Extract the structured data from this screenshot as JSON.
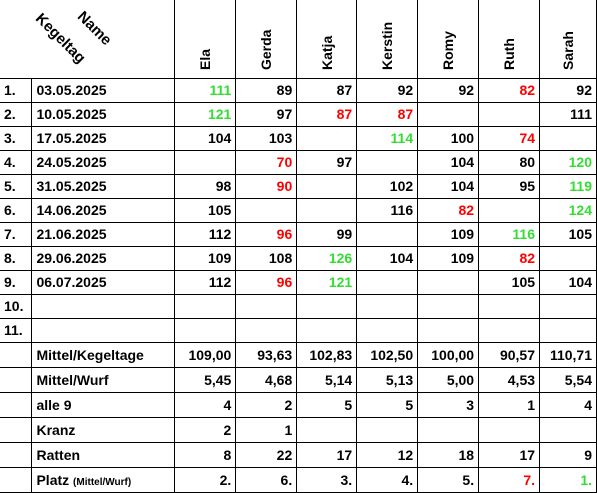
{
  "header": {
    "corner_name": "Name",
    "corner_kegeltag": "Kegeltag",
    "players": [
      "Ela",
      "Gerda",
      "Katja",
      "Kerstin",
      "Romy",
      "Ruth",
      "Sarah"
    ]
  },
  "colors": {
    "red": "#ff0000",
    "green": "#33dd33"
  },
  "rows": [
    {
      "num": "1.",
      "date": "03.05.2025",
      "cells": [
        {
          "v": "111",
          "c": "green"
        },
        {
          "v": "89",
          "c": ""
        },
        {
          "v": "87",
          "c": ""
        },
        {
          "v": "92",
          "c": ""
        },
        {
          "v": "92",
          "c": ""
        },
        {
          "v": "82",
          "c": "red"
        },
        {
          "v": "92",
          "c": ""
        }
      ]
    },
    {
      "num": "2.",
      "date": "10.05.2025",
      "cells": [
        {
          "v": "121",
          "c": "green"
        },
        {
          "v": "97",
          "c": ""
        },
        {
          "v": "87",
          "c": "red"
        },
        {
          "v": "87",
          "c": "red"
        },
        {
          "v": "",
          "c": ""
        },
        {
          "v": "",
          "c": ""
        },
        {
          "v": "111",
          "c": ""
        }
      ]
    },
    {
      "num": "3.",
      "date": "17.05.2025",
      "cells": [
        {
          "v": "104",
          "c": ""
        },
        {
          "v": "103",
          "c": ""
        },
        {
          "v": "",
          "c": ""
        },
        {
          "v": "114",
          "c": "green"
        },
        {
          "v": "100",
          "c": ""
        },
        {
          "v": "74",
          "c": "red"
        },
        {
          "v": "",
          "c": ""
        }
      ]
    },
    {
      "num": "4.",
      "date": "24.05.2025",
      "cells": [
        {
          "v": "",
          "c": ""
        },
        {
          "v": "70",
          "c": "red"
        },
        {
          "v": "97",
          "c": ""
        },
        {
          "v": "",
          "c": ""
        },
        {
          "v": "104",
          "c": ""
        },
        {
          "v": "80",
          "c": ""
        },
        {
          "v": "120",
          "c": "green"
        }
      ]
    },
    {
      "num": "5.",
      "date": "31.05.2025",
      "cells": [
        {
          "v": "98",
          "c": ""
        },
        {
          "v": "90",
          "c": "red"
        },
        {
          "v": "",
          "c": ""
        },
        {
          "v": "102",
          "c": ""
        },
        {
          "v": "104",
          "c": ""
        },
        {
          "v": "95",
          "c": ""
        },
        {
          "v": "119",
          "c": "green"
        }
      ]
    },
    {
      "num": "6.",
      "date": "14.06.2025",
      "cells": [
        {
          "v": "105",
          "c": ""
        },
        {
          "v": "",
          "c": ""
        },
        {
          "v": "",
          "c": ""
        },
        {
          "v": "116",
          "c": ""
        },
        {
          "v": "82",
          "c": "red"
        },
        {
          "v": "",
          "c": ""
        },
        {
          "v": "124",
          "c": "green"
        }
      ]
    },
    {
      "num": "7.",
      "date": "21.06.2025",
      "cells": [
        {
          "v": "112",
          "c": ""
        },
        {
          "v": "96",
          "c": "red"
        },
        {
          "v": "99",
          "c": ""
        },
        {
          "v": "",
          "c": ""
        },
        {
          "v": "109",
          "c": ""
        },
        {
          "v": "116",
          "c": "green"
        },
        {
          "v": "105",
          "c": ""
        }
      ]
    },
    {
      "num": "8.",
      "date": "29.06.2025",
      "cells": [
        {
          "v": "109",
          "c": ""
        },
        {
          "v": "108",
          "c": ""
        },
        {
          "v": "126",
          "c": "green"
        },
        {
          "v": "104",
          "c": ""
        },
        {
          "v": "109",
          "c": ""
        },
        {
          "v": "82",
          "c": "red"
        },
        {
          "v": "",
          "c": ""
        }
      ]
    },
    {
      "num": "9.",
      "date": "06.07.2025",
      "cells": [
        {
          "v": "112",
          "c": ""
        },
        {
          "v": "96",
          "c": "red"
        },
        {
          "v": "121",
          "c": "green"
        },
        {
          "v": "",
          "c": ""
        },
        {
          "v": "",
          "c": ""
        },
        {
          "v": "105",
          "c": ""
        },
        {
          "v": "104",
          "c": ""
        }
      ]
    },
    {
      "num": "10.",
      "date": "",
      "cells": [
        {
          "v": "",
          "c": ""
        },
        {
          "v": "",
          "c": ""
        },
        {
          "v": "",
          "c": ""
        },
        {
          "v": "",
          "c": ""
        },
        {
          "v": "",
          "c": ""
        },
        {
          "v": "",
          "c": ""
        },
        {
          "v": "",
          "c": ""
        }
      ]
    },
    {
      "num": "11.",
      "date": "",
      "cells": [
        {
          "v": "",
          "c": ""
        },
        {
          "v": "",
          "c": ""
        },
        {
          "v": "",
          "c": ""
        },
        {
          "v": "",
          "c": ""
        },
        {
          "v": "",
          "c": ""
        },
        {
          "v": "",
          "c": ""
        },
        {
          "v": "",
          "c": ""
        }
      ]
    }
  ],
  "stats": [
    {
      "label": "Mittel/Kegeltage",
      "cells": [
        {
          "v": "109,00",
          "c": ""
        },
        {
          "v": "93,63",
          "c": ""
        },
        {
          "v": "102,83",
          "c": ""
        },
        {
          "v": "102,50",
          "c": ""
        },
        {
          "v": "100,00",
          "c": ""
        },
        {
          "v": "90,57",
          "c": ""
        },
        {
          "v": "110,71",
          "c": ""
        }
      ]
    },
    {
      "label": "Mittel/Wurf",
      "cells": [
        {
          "v": "5,45",
          "c": ""
        },
        {
          "v": "4,68",
          "c": ""
        },
        {
          "v": "5,14",
          "c": ""
        },
        {
          "v": "5,13",
          "c": ""
        },
        {
          "v": "5,00",
          "c": ""
        },
        {
          "v": "4,53",
          "c": ""
        },
        {
          "v": "5,54",
          "c": ""
        }
      ]
    },
    {
      "label": "alle 9",
      "cells": [
        {
          "v": "4",
          "c": ""
        },
        {
          "v": "2",
          "c": ""
        },
        {
          "v": "5",
          "c": ""
        },
        {
          "v": "5",
          "c": ""
        },
        {
          "v": "3",
          "c": ""
        },
        {
          "v": "1",
          "c": ""
        },
        {
          "v": "4",
          "c": ""
        }
      ]
    },
    {
      "label": "Kranz",
      "cells": [
        {
          "v": "2",
          "c": ""
        },
        {
          "v": "1",
          "c": ""
        },
        {
          "v": "",
          "c": ""
        },
        {
          "v": "",
          "c": ""
        },
        {
          "v": "",
          "c": ""
        },
        {
          "v": "",
          "c": ""
        },
        {
          "v": "",
          "c": ""
        }
      ]
    },
    {
      "label": "Ratten",
      "cells": [
        {
          "v": "8",
          "c": ""
        },
        {
          "v": "22",
          "c": ""
        },
        {
          "v": "17",
          "c": ""
        },
        {
          "v": "12",
          "c": ""
        },
        {
          "v": "18",
          "c": ""
        },
        {
          "v": "17",
          "c": ""
        },
        {
          "v": "9",
          "c": ""
        }
      ]
    },
    {
      "label": "Platz",
      "label_small": "(Mittel/Wurf)",
      "cells": [
        {
          "v": "2.",
          "c": ""
        },
        {
          "v": "6.",
          "c": ""
        },
        {
          "v": "3.",
          "c": ""
        },
        {
          "v": "4.",
          "c": ""
        },
        {
          "v": "5.",
          "c": ""
        },
        {
          "v": "7.",
          "c": "red"
        },
        {
          "v": "1.",
          "c": "green"
        }
      ]
    }
  ]
}
